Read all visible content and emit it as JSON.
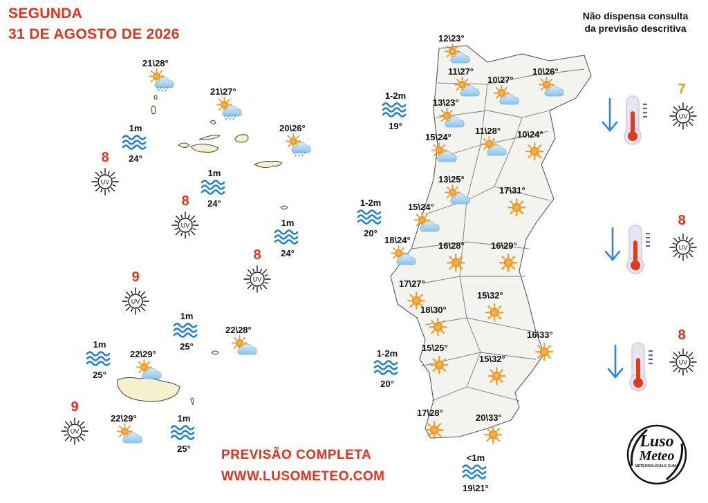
{
  "header": {
    "day": "SEGUNDA",
    "date": "31 DE AGOSTO DE 2026"
  },
  "disclaimer": {
    "line1": "Não dispensa consulta",
    "line2": "da previsão descritiva"
  },
  "islands": {
    "weather": [
      {
        "temp": "21\\28°",
        "icon": "sun-rain-icon"
      },
      {
        "temp": "21\\27°",
        "icon": "sun-rain-icon"
      },
      {
        "temp": "20\\26°",
        "icon": "sun-rain-icon"
      },
      {
        "temp": "22\\28°",
        "icon": "sun-cloud-icon"
      },
      {
        "temp": "22\\29°",
        "icon": "sun-cloud-icon"
      },
      {
        "temp": "22\\29°",
        "icon": "sun-cloud-icon"
      }
    ],
    "sea": [
      {
        "wave": "1m",
        "temp": "24°"
      },
      {
        "wave": "1m",
        "temp": "24°"
      },
      {
        "wave": "1m",
        "temp": "24°"
      },
      {
        "wave": "1m",
        "temp": "25°"
      },
      {
        "wave": "1m",
        "temp": "25°"
      },
      {
        "wave": "1m",
        "temp": "25°"
      }
    ],
    "uv": [
      "8",
      "8",
      "8",
      "9",
      "9"
    ]
  },
  "mainland": {
    "cities": [
      {
        "temp": "12\\23°",
        "icon": "sun-cloud-icon"
      },
      {
        "temp": "11\\27°",
        "icon": "sun-cloud-icon"
      },
      {
        "temp": "10\\27°",
        "icon": "sun-cloud-icon"
      },
      {
        "temp": "10\\26°",
        "icon": "sun-cloud-icon"
      },
      {
        "temp": "13\\23°",
        "icon": "sun-cloud-icon"
      },
      {
        "temp": "15\\24°",
        "icon": "sun-cloud-icon"
      },
      {
        "temp": "11\\28°",
        "icon": "sun-cloud-icon"
      },
      {
        "temp": "10\\24°",
        "icon": "sun-icon"
      },
      {
        "temp": "13\\25°",
        "icon": "sun-cloud-icon"
      },
      {
        "temp": "17\\31°",
        "icon": "sun-icon"
      },
      {
        "temp": "15\\24°",
        "icon": "sun-cloud-icon"
      },
      {
        "temp": "18\\24°",
        "icon": "sun-cloud-icon"
      },
      {
        "temp": "16\\28°",
        "icon": "sun-icon"
      },
      {
        "temp": "16\\29°",
        "icon": "sun-icon"
      },
      {
        "temp": "17\\27°",
        "icon": "sun-icon"
      },
      {
        "temp": "15\\32°",
        "icon": "sun-icon"
      },
      {
        "temp": "18\\30°",
        "icon": "sun-icon"
      },
      {
        "temp": "16\\33°",
        "icon": "sun-icon"
      },
      {
        "temp": "15\\25°",
        "icon": "sun-icon"
      },
      {
        "temp": "15\\32°",
        "icon": "sun-icon"
      },
      {
        "temp": "17\\28°",
        "icon": "sun-icon"
      },
      {
        "temp": "20\\33°",
        "icon": "sun-icon"
      }
    ],
    "sea": [
      {
        "wave": "1-2m",
        "temp": "19°"
      },
      {
        "wave": "1-2m",
        "temp": "20°"
      },
      {
        "wave": "1-2m",
        "temp": "20°"
      },
      {
        "wave": "<1m",
        "temp": "19\\21°"
      }
    ]
  },
  "uv_panel": [
    "7",
    "8",
    "8"
  ],
  "uv_label": "UV",
  "footer": {
    "line1": "PREVISÃO COMPLETA",
    "line2": "WWW.LUSOMETEO.COM"
  },
  "logo": {
    "line1": "Luso",
    "line2": "Meteo",
    "tagline": "METEOROLOGIA E CLIMA"
  },
  "colors": {
    "accent": "#e8301a",
    "uv_orange": "#f39a1b",
    "sea_blue": "#1a7fd6",
    "sun": "#f39a1b"
  }
}
